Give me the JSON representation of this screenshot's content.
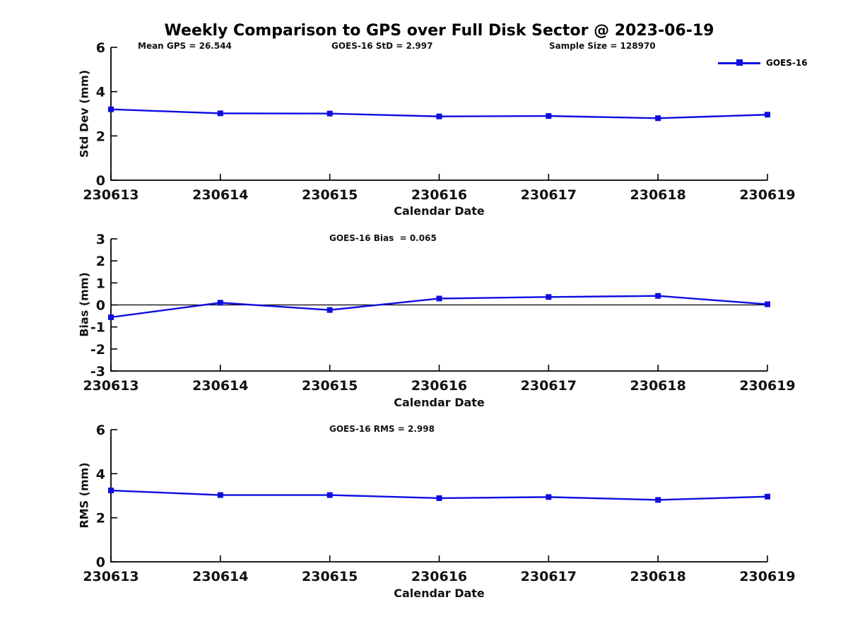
{
  "figure": {
    "title": "Weekly Comparison to GPS over Full Disk Sector @ 2023-06-19",
    "background": "#ffffff"
  },
  "legend": {
    "label": "GOES-16",
    "color": "#0d0de0"
  },
  "chart_data": [
    {
      "id": "std-dev",
      "type": "line",
      "title": "",
      "header_annotations": [
        "Mean GPS = 26.544",
        "GOES-16 StD = 2.997",
        "Sample Size = 128970"
      ],
      "x_categories": [
        "230613",
        "230614",
        "230615",
        "230616",
        "230617",
        "230618",
        "230619"
      ],
      "series": [
        {
          "name": "GOES-16",
          "color": "#0d0de0",
          "marker": "square",
          "values": [
            3.2,
            3.02,
            3.01,
            2.88,
            2.9,
            2.8,
            2.96
          ]
        }
      ],
      "xlabel": "Calendar Date",
      "ylabel": "Std Dev (mm)",
      "ylim": [
        0,
        6
      ],
      "yticks": [
        0,
        2,
        4,
        6
      ],
      "grid": false,
      "zero_line": false,
      "legend_position": "top-right"
    },
    {
      "id": "bias",
      "type": "line",
      "annotation": "GOES-16 Bias  = 0.065",
      "x_categories": [
        "230613",
        "230614",
        "230615",
        "230616",
        "230617",
        "230618",
        "230619"
      ],
      "series": [
        {
          "name": "GOES-16",
          "color": "#0d0de0",
          "marker": "square",
          "values": [
            -0.56,
            0.1,
            -0.23,
            0.29,
            0.36,
            0.41,
            0.03
          ]
        }
      ],
      "xlabel": "Calendar Date",
      "ylabel": "Bias (mm)",
      "ylim": [
        -3,
        3
      ],
      "yticks": [
        3,
        2,
        1,
        0,
        -1,
        -2,
        -3
      ],
      "grid": false,
      "zero_line": true
    },
    {
      "id": "rms",
      "type": "line",
      "annotation": "GOES-16 RMS = 2.998",
      "x_categories": [
        "230613",
        "230614",
        "230615",
        "230616",
        "230617",
        "230618",
        "230619"
      ],
      "series": [
        {
          "name": "GOES-16",
          "color": "#0d0de0",
          "marker": "square",
          "values": [
            3.24,
            3.03,
            3.03,
            2.89,
            2.94,
            2.81,
            2.96
          ]
        }
      ],
      "xlabel": "Calendar Date",
      "ylabel": "RMS (mm)",
      "ylim": [
        0,
        6
      ],
      "yticks": [
        0,
        2,
        4,
        6
      ],
      "grid": false,
      "zero_line": false
    }
  ]
}
